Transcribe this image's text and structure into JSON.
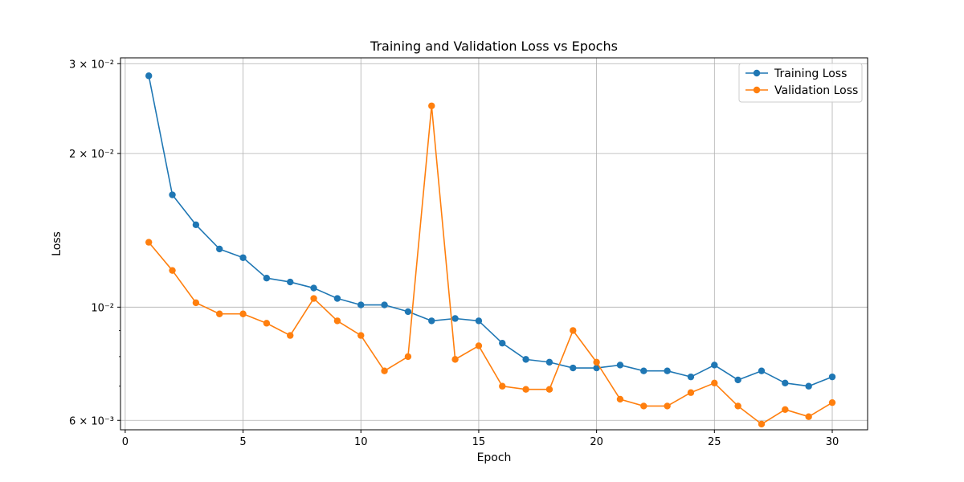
{
  "chart_data": {
    "type": "line",
    "title": "Training and Validation Loss vs Epochs",
    "xlabel": "Epoch",
    "ylabel": "Loss",
    "yscale": "log",
    "xlim": [
      -0.2,
      31.5
    ],
    "ylim": [
      0.00575,
      0.0308
    ],
    "grid": true,
    "legend_position": "top-right",
    "x_ticks": [
      0,
      5,
      10,
      15,
      20,
      25,
      30
    ],
    "y_ticks": [
      {
        "value": 0.006,
        "label": "6 × 10⁻³"
      },
      {
        "value": 0.01,
        "label": "10⁻²"
      },
      {
        "value": 0.02,
        "label": "2 × 10⁻²"
      },
      {
        "value": 0.03,
        "label": "3 × 10⁻²"
      }
    ],
    "y_minor_ticks": [
      0.007,
      0.008,
      0.009
    ],
    "x": [
      1,
      2,
      3,
      4,
      5,
      6,
      7,
      8,
      9,
      10,
      11,
      12,
      13,
      14,
      15,
      16,
      17,
      18,
      19,
      20,
      21,
      22,
      23,
      24,
      25,
      26,
      27,
      28,
      29,
      30
    ],
    "series": [
      {
        "name": "Training Loss",
        "color": "#1f77b4",
        "values": [
          0.0284,
          0.0166,
          0.0145,
          0.013,
          0.0125,
          0.0114,
          0.0112,
          0.0109,
          0.0104,
          0.0101,
          0.0101,
          0.0098,
          0.0094,
          0.0095,
          0.0094,
          0.0085,
          0.0079,
          0.0078,
          0.0076,
          0.0076,
          0.0077,
          0.0075,
          0.0075,
          0.0073,
          0.0077,
          0.0072,
          0.0075,
          0.0071,
          0.007,
          0.0073
        ]
      },
      {
        "name": "Validation Loss",
        "color": "#ff7f0e",
        "values": [
          0.0134,
          0.0118,
          0.0102,
          0.0097,
          0.0097,
          0.0093,
          0.0088,
          0.0104,
          0.0094,
          0.0088,
          0.0075,
          0.008,
          0.0248,
          0.0079,
          0.0084,
          0.007,
          0.0069,
          0.0069,
          0.009,
          0.0078,
          0.0066,
          0.0064,
          0.0064,
          0.0068,
          0.0071,
          0.0064,
          0.0059,
          0.0063,
          0.0061,
          0.0065
        ]
      }
    ]
  }
}
